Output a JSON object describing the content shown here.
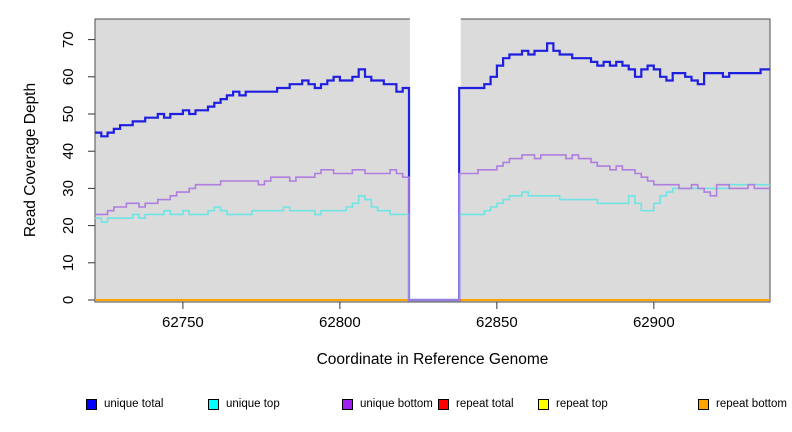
{
  "figure": {
    "ylabel": "Read Coverage Depth",
    "xlabel": "Coordinate in Reference Genome",
    "background": "#ffffff"
  },
  "chart_data": {
    "type": "line",
    "subtype": "step-coverage-depth",
    "title": "",
    "xlabel": "Coordinate in Reference Genome",
    "ylabel": "Read Coverage Depth",
    "xlim": [
      62722,
      62937
    ],
    "ylim": [
      0,
      70
    ],
    "x_ticks": [
      62750,
      62800,
      62850,
      62900
    ],
    "y_ticks": [
      0,
      10,
      20,
      30,
      40,
      50,
      60,
      70
    ],
    "grid": false,
    "legend_position": "bottom",
    "plot_background": "#dbdbdb",
    "border_color": "#4d4d4d",
    "tick_color": "#333333",
    "masked_region": {
      "x_start": 62822.3,
      "x_end": 62838.5,
      "color": "#ffffff"
    },
    "x_start": 62722,
    "x_step": 2,
    "draw_order": [
      3,
      4,
      5,
      0,
      1,
      2
    ],
    "series": [
      {
        "name": "unique total",
        "color": "#1f1fe0",
        "legend_color": "#0000ff",
        "line_width": 2.2,
        "values": [
          45,
          44,
          45,
          46,
          47,
          47,
          48,
          48,
          49,
          49,
          50,
          49,
          50,
          50,
          51,
          50,
          51,
          51,
          52,
          53,
          54,
          55,
          56,
          55,
          56,
          56,
          56,
          56,
          56,
          57,
          57,
          58,
          58,
          59,
          58,
          57,
          58,
          59,
          60,
          59,
          59,
          60,
          62,
          60,
          59,
          59,
          58,
          58,
          56,
          57,
          0,
          0,
          0,
          0,
          0,
          0,
          0,
          0,
          57,
          57,
          57,
          57,
          58,
          60,
          63,
          65,
          66,
          66,
          67,
          66,
          67,
          67,
          69,
          67,
          66,
          66,
          65,
          65,
          65,
          64,
          63,
          64,
          63,
          64,
          63,
          62,
          60,
          62,
          63,
          62,
          60,
          59,
          61,
          61,
          60,
          59,
          58,
          61,
          61,
          61,
          60,
          61,
          61,
          61,
          61,
          61,
          62,
          62
        ]
      },
      {
        "name": "unique top",
        "color": "#70e4e4",
        "legend_color": "#00ffff",
        "line_width": 1.6,
        "values": [
          22,
          21,
          22,
          22,
          22,
          22,
          23,
          22,
          23,
          23,
          23,
          24,
          23,
          23,
          24,
          23,
          23,
          23,
          24,
          25,
          24,
          23,
          23,
          23,
          23,
          24,
          24,
          24,
          24,
          24,
          25,
          24,
          24,
          24,
          24,
          23,
          24,
          24,
          24,
          24,
          25,
          26,
          28,
          27,
          25,
          24,
          24,
          23,
          23,
          23,
          0,
          0,
          0,
          0,
          0,
          0,
          0,
          0,
          23,
          23,
          23,
          23,
          24,
          25,
          26,
          27,
          28,
          28,
          29,
          28,
          28,
          28,
          28,
          28,
          27,
          27,
          27,
          27,
          27,
          27,
          26,
          26,
          26,
          26,
          26,
          28,
          26,
          24,
          24,
          26,
          28,
          29,
          30,
          30,
          30,
          30,
          30,
          30,
          30,
          30,
          30,
          31,
          31,
          31,
          31,
          31,
          31,
          31
        ]
      },
      {
        "name": "unique bottom",
        "color": "#b07ede",
        "legend_color": "#a020f0",
        "line_width": 1.6,
        "values": [
          23,
          23,
          24,
          25,
          25,
          26,
          26,
          25,
          26,
          26,
          27,
          27,
          28,
          29,
          29,
          30,
          31,
          31,
          31,
          31,
          32,
          32,
          32,
          32,
          32,
          32,
          31,
          32,
          33,
          33,
          33,
          32,
          33,
          33,
          33,
          34,
          35,
          35,
          34,
          34,
          34,
          35,
          35,
          34,
          34,
          34,
          34,
          35,
          34,
          33,
          0,
          0,
          0,
          0,
          0,
          0,
          0,
          0,
          34,
          34,
          34,
          35,
          35,
          35,
          36,
          37,
          38,
          38,
          39,
          39,
          38,
          39,
          39,
          39,
          39,
          38,
          39,
          38,
          38,
          37,
          36,
          36,
          35,
          36,
          35,
          35,
          34,
          33,
          32,
          31,
          31,
          31,
          31,
          30,
          30,
          31,
          30,
          29,
          28,
          31,
          31,
          30,
          30,
          30,
          31,
          30,
          30,
          30
        ]
      },
      {
        "name": "repeat total",
        "color": "#dd0000",
        "legend_color": "#ff0000",
        "line_width": 1.6,
        "constant": 0
      },
      {
        "name": "repeat top",
        "color": "#ffff00",
        "legend_color": "#ffff00",
        "line_width": 1.6,
        "constant": 0
      },
      {
        "name": "repeat bottom",
        "color": "#ffa500",
        "legend_color": "#ffa500",
        "line_width": 2,
        "constant": 0
      }
    ]
  }
}
